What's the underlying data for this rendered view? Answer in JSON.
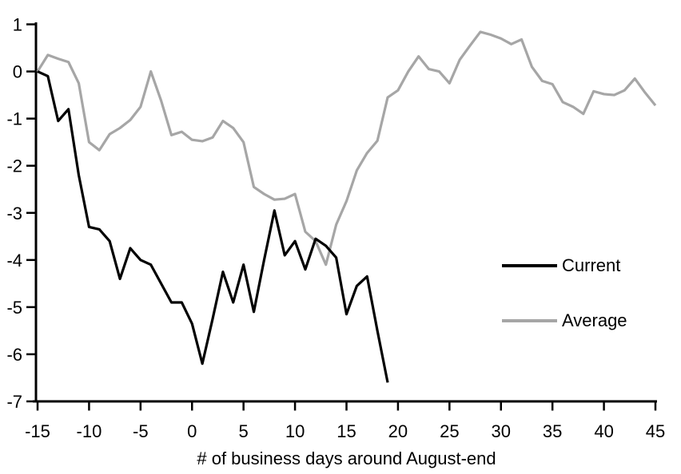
{
  "chart_data": {
    "type": "line",
    "xlabel": "# of business days around August-end",
    "ylabel": "",
    "xlim": [
      -15,
      45
    ],
    "ylim": [
      -7,
      1
    ],
    "x_ticks": [
      -15,
      -10,
      -5,
      0,
      5,
      10,
      15,
      20,
      25,
      30,
      35,
      40,
      45
    ],
    "y_ticks": [
      1,
      0,
      -1,
      -2,
      -3,
      -4,
      -5,
      -6,
      -7
    ],
    "grid": false,
    "legend_position": "right-middle",
    "axis_color": "#000000",
    "series": [
      {
        "name": "Current",
        "color": "#000000",
        "x": [
          -15,
          -14,
          -13,
          -12,
          -11,
          -10,
          -9,
          -8,
          -7,
          -6,
          -5,
          -4,
          -3,
          -2,
          -1,
          0,
          1,
          2,
          3,
          4,
          5,
          6,
          7,
          8,
          9,
          10,
          11,
          12,
          13,
          14,
          15,
          16,
          17,
          18,
          19
        ],
        "values": [
          0,
          -0.1,
          -1.05,
          -0.8,
          -2.2,
          -3.3,
          -3.35,
          -3.6,
          -4.4,
          -3.75,
          -4.0,
          -4.1,
          -4.5,
          -4.9,
          -4.9,
          -5.35,
          -6.2,
          -5.25,
          -4.25,
          -4.9,
          -4.1,
          -5.1,
          -4.0,
          -2.95,
          -3.9,
          -3.6,
          -4.2,
          -3.55,
          -3.7,
          -3.95,
          -5.15,
          -4.55,
          -4.35,
          -5.5,
          -6.6
        ]
      },
      {
        "name": "Average",
        "color": "#a6a6a6",
        "x": [
          -15,
          -14,
          -13,
          -12,
          -11,
          -10,
          -9,
          -8,
          -7,
          -6,
          -5,
          -4,
          -3,
          -2,
          -1,
          0,
          1,
          2,
          3,
          4,
          5,
          6,
          7,
          8,
          9,
          10,
          11,
          12,
          13,
          14,
          15,
          16,
          17,
          18,
          19,
          20,
          21,
          22,
          23,
          24,
          25,
          26,
          27,
          28,
          29,
          30,
          31,
          32,
          33,
          34,
          35,
          36,
          37,
          38,
          39,
          40,
          41,
          42,
          43,
          44,
          45
        ],
        "values": [
          0,
          0.35,
          0.27,
          0.2,
          -0.25,
          -1.5,
          -1.67,
          -1.33,
          -1.2,
          -1.03,
          -0.75,
          0.0,
          -0.62,
          -1.35,
          -1.28,
          -1.45,
          -1.48,
          -1.4,
          -1.05,
          -1.2,
          -1.5,
          -2.45,
          -2.6,
          -2.72,
          -2.7,
          -2.6,
          -3.4,
          -3.6,
          -4.1,
          -3.25,
          -2.75,
          -2.1,
          -1.73,
          -1.47,
          -0.55,
          -0.4,
          0.0,
          0.32,
          0.05,
          0.0,
          -0.25,
          0.25,
          0.55,
          0.84,
          0.78,
          0.7,
          0.58,
          0.68,
          0.1,
          -0.2,
          -0.27,
          -0.65,
          -0.75,
          -0.9,
          -0.42,
          -0.48,
          -0.5,
          -0.4,
          -0.15,
          -0.45,
          -0.72
        ]
      }
    ]
  }
}
